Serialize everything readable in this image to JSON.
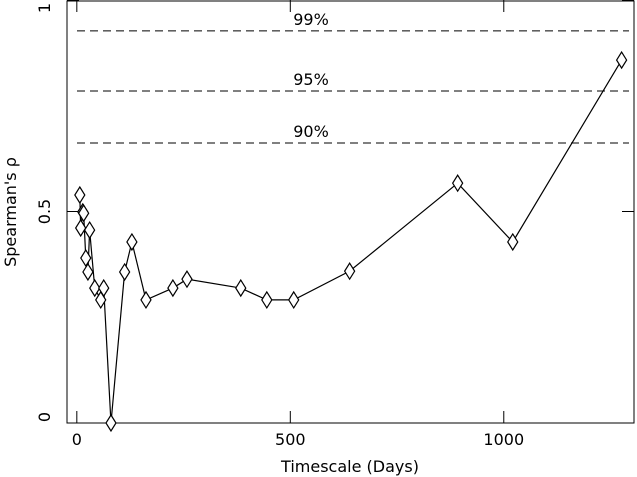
{
  "chart_data": {
    "type": "line",
    "x_label": "Timescale (Days)",
    "y_label": "Spearman's ρ",
    "x": [
      7,
      9,
      14,
      16,
      21,
      26,
      30,
      42,
      56,
      63,
      80,
      112,
      129,
      162,
      225,
      258,
      384,
      445,
      508,
      639,
      892,
      1021,
      1276
    ],
    "series": [
      {
        "color": "#000000",
        "values": [
          0.539,
          0.461,
          0.499,
          0.496,
          0.39,
          0.357,
          0.456,
          0.319,
          0.291,
          0.319,
          0.0,
          0.357,
          0.428,
          0.291,
          0.319,
          0.34,
          0.319,
          0.291,
          0.291,
          0.359,
          0.567,
          0.428,
          0.858
        ]
      }
    ],
    "reference_lines": [
      {
        "label": "99%",
        "value": 0.927
      },
      {
        "label": "95%",
        "value": 0.785
      },
      {
        "label": "90%",
        "value": 0.662
      }
    ],
    "xlim": [
      -23,
      1305
    ],
    "ylim": [
      0,
      1
    ],
    "xticks": [
      0,
      500,
      1000
    ],
    "yticks": [
      0,
      0.5,
      1
    ]
  }
}
